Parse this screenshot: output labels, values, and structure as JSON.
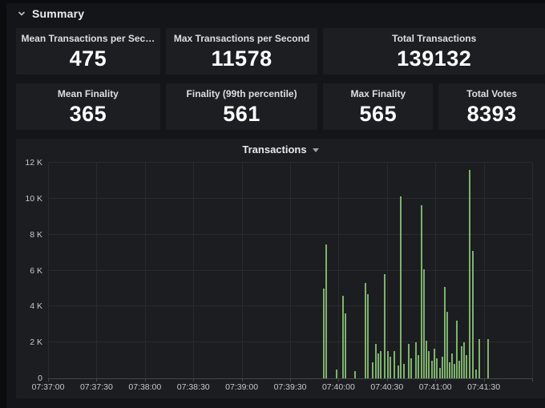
{
  "header": {
    "title": "Summary"
  },
  "stats_row1": [
    {
      "title": "Mean Transactions per Sec…",
      "value": "475"
    },
    {
      "title": "Max Transactions per Second",
      "value": "11578"
    },
    {
      "title": "Total Transactions",
      "value": "139132"
    }
  ],
  "stats_row2": [
    {
      "title": "Mean Finality",
      "value": "365"
    },
    {
      "title": "Finality (99th percentile)",
      "value": "561"
    },
    {
      "title": "Max Finality",
      "value": "565"
    },
    {
      "title": "Total Votes",
      "value": "8393"
    }
  ],
  "chart_data": {
    "type": "bar",
    "title": "Transactions",
    "ylabel": "",
    "xlabel": "",
    "ylim": [
      0,
      12000
    ],
    "x_domain_seconds": [
      0,
      300
    ],
    "grid": true,
    "bar_color": "#7eb26d",
    "y_ticks": [
      {
        "v": 0,
        "label": "0"
      },
      {
        "v": 2000,
        "label": "2 K"
      },
      {
        "v": 4000,
        "label": "4 K"
      },
      {
        "v": 6000,
        "label": "6 K"
      },
      {
        "v": 8000,
        "label": "8 K"
      },
      {
        "v": 10000,
        "label": "10 K"
      },
      {
        "v": 12000,
        "label": "12 K"
      }
    ],
    "x_ticks": [
      {
        "t": 0,
        "label": "07:37:00"
      },
      {
        "t": 30,
        "label": "07:37:30"
      },
      {
        "t": 60,
        "label": "07:38:00"
      },
      {
        "t": 90,
        "label": "07:38:30"
      },
      {
        "t": 120,
        "label": "07:39:00"
      },
      {
        "t": 150,
        "label": "07:39:30"
      },
      {
        "t": 180,
        "label": "07:40:00"
      },
      {
        "t": 210,
        "label": "07:40:30"
      },
      {
        "t": 240,
        "label": "07:41:00"
      },
      {
        "t": 270,
        "label": "07:41:30"
      },
      {
        "t": 300,
        "label": ""
      }
    ],
    "bars": [
      [
        171,
        5000
      ],
      [
        172.5,
        7430
      ],
      [
        179,
        500
      ],
      [
        183,
        4600
      ],
      [
        184.5,
        3600
      ],
      [
        190,
        420
      ],
      [
        196.5,
        5330
      ],
      [
        198,
        4700
      ],
      [
        201,
        900
      ],
      [
        203,
        1900
      ],
      [
        204.5,
        1400
      ],
      [
        206,
        1500
      ],
      [
        208.5,
        5780
      ],
      [
        210.5,
        1500
      ],
      [
        212,
        1200
      ],
      [
        214.5,
        1500
      ],
      [
        217,
        700
      ],
      [
        218.5,
        10140
      ],
      [
        220.5,
        800
      ],
      [
        223.5,
        1900
      ],
      [
        225,
        1100
      ],
      [
        228,
        2000
      ],
      [
        229.5,
        1300
      ],
      [
        231.5,
        9630
      ],
      [
        233,
        6050
      ],
      [
        234.5,
        2100
      ],
      [
        236,
        1500
      ],
      [
        238,
        1000
      ],
      [
        239.5,
        1650
      ],
      [
        241,
        1100
      ],
      [
        243,
        600
      ],
      [
        244.5,
        1200
      ],
      [
        246,
        5100
      ],
      [
        247.5,
        3700
      ],
      [
        249,
        900
      ],
      [
        250.5,
        1400
      ],
      [
        252,
        800
      ],
      [
        253.5,
        3200
      ],
      [
        255,
        1000
      ],
      [
        256.5,
        1800
      ],
      [
        258,
        2000
      ],
      [
        259.5,
        1300
      ],
      [
        261.5,
        11578
      ],
      [
        263,
        7100
      ],
      [
        265,
        500
      ],
      [
        267,
        2200
      ],
      [
        272.5,
        2200
      ]
    ]
  },
  "colors": {
    "page_bg": "#141518",
    "panel_bg": "#1d1e21",
    "bar_green": "#7eb26d",
    "gridline": "#2a2b2f",
    "text_primary": "#ffffff",
    "text_axis": "#c8c9cb"
  }
}
